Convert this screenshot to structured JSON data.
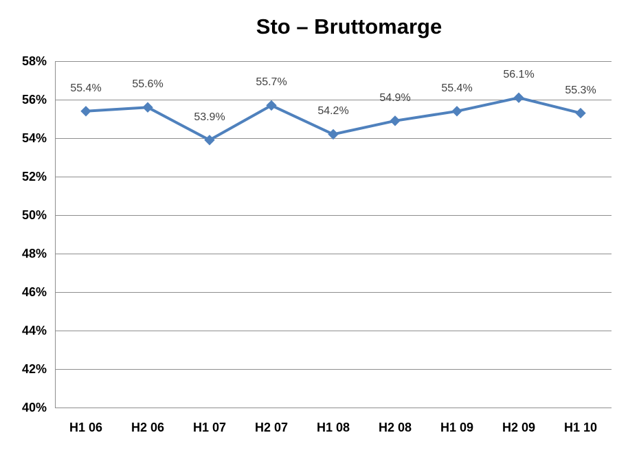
{
  "title": "Sto – Bruttomarge",
  "chart_data": {
    "type": "line",
    "title": "Sto – Bruttomarge",
    "categories": [
      "H1 06",
      "H2 06",
      "H1 07",
      "H2 07",
      "H1 08",
      "H2 08",
      "H1 09",
      "H2 09",
      "H1 10"
    ],
    "series": [
      {
        "name": "Bruttomarge",
        "values": [
          55.4,
          55.6,
          53.9,
          55.7,
          54.2,
          54.9,
          55.4,
          56.1,
          55.3
        ]
      }
    ],
    "data_labels": [
      "55.4%",
      "55.6%",
      "53.9%",
      "55.7%",
      "54.2%",
      "54.9%",
      "55.4%",
      "56.1%",
      "55.3%"
    ],
    "xlabel": "",
    "ylabel": "",
    "ylim": [
      40,
      58
    ],
    "ytick_step": 2,
    "ytick_labels": [
      "40%",
      "42%",
      "44%",
      "46%",
      "48%",
      "50%",
      "52%",
      "54%",
      "56%",
      "58%"
    ],
    "grid": true,
    "legend_position": "none",
    "colors": {
      "line": "#4F81BD",
      "marker": "#4F81BD",
      "gridline": "#8E8E8E",
      "axis_line": "#8E8E8E",
      "axis_text": "#000000",
      "data_label_text": "#404040",
      "background": "#FFFFFF"
    }
  }
}
